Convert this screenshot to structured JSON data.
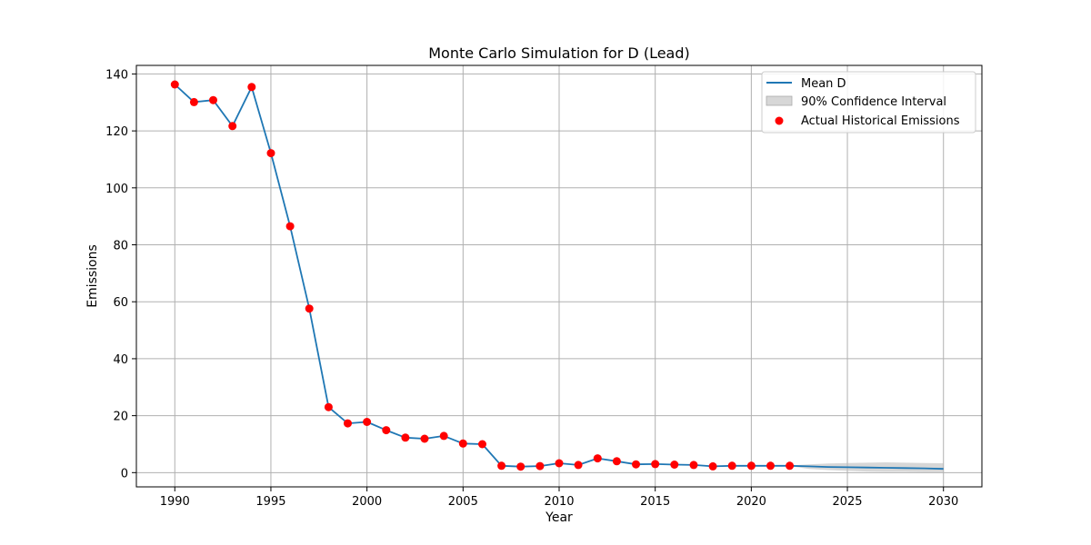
{
  "chart_data": {
    "type": "line",
    "title": "Monte Carlo Simulation for D (Lead)",
    "xlabel": "Year",
    "ylabel": "Emissions",
    "xlim": [
      1988,
      2032
    ],
    "ylim": [
      -5,
      143
    ],
    "xticks": [
      1990,
      1995,
      2000,
      2005,
      2010,
      2015,
      2020,
      2025,
      2030
    ],
    "yticks": [
      0,
      20,
      40,
      60,
      80,
      100,
      120,
      140
    ],
    "grid": true,
    "legend_position": "top-right",
    "colors": {
      "mean_line": "#1f77b4",
      "confidence_band": "#bdbdbd",
      "actual_points": "#ff0000"
    },
    "series": [
      {
        "name": "Mean D",
        "kind": "line",
        "x": [
          1990,
          1991,
          1992,
          1993,
          1994,
          1995,
          1996,
          1997,
          1998,
          1999,
          2000,
          2001,
          2002,
          2003,
          2004,
          2005,
          2006,
          2007,
          2008,
          2009,
          2010,
          2011,
          2012,
          2013,
          2014,
          2015,
          2016,
          2017,
          2018,
          2019,
          2020,
          2021,
          2022,
          2023,
          2024,
          2025,
          2026,
          2027,
          2028,
          2029,
          2030
        ],
        "y": [
          136.3,
          130.1,
          130.8,
          121.7,
          135.4,
          112.2,
          86.5,
          57.6,
          23.0,
          17.3,
          17.8,
          14.9,
          12.3,
          11.9,
          12.9,
          10.2,
          10.0,
          2.4,
          2.1,
          2.3,
          3.3,
          2.7,
          5.0,
          4.0,
          2.9,
          3.0,
          2.8,
          2.7,
          2.2,
          2.4,
          2.4,
          2.4,
          2.4,
          2.2,
          2.0,
          1.9,
          1.8,
          1.7,
          1.6,
          1.5,
          1.3
        ]
      },
      {
        "name": "90% Confidence Interval",
        "kind": "band",
        "x": [
          2022,
          2023,
          2024,
          2025,
          2026,
          2027,
          2028,
          2029,
          2030
        ],
        "lower": [
          2.3,
          1.3,
          0.9,
          0.6,
          0.4,
          0.3,
          0.3,
          0.2,
          0.2
        ],
        "upper": [
          2.5,
          2.9,
          3.2,
          3.4,
          3.5,
          3.6,
          3.5,
          3.4,
          3.3
        ]
      },
      {
        "name": "Actual Historical Emissions",
        "kind": "scatter",
        "x": [
          1990,
          1991,
          1992,
          1993,
          1994,
          1995,
          1996,
          1997,
          1998,
          1999,
          2000,
          2001,
          2002,
          2003,
          2004,
          2005,
          2006,
          2007,
          2008,
          2009,
          2010,
          2011,
          2012,
          2013,
          2014,
          2015,
          2016,
          2017,
          2018,
          2019,
          2020,
          2021,
          2022
        ],
        "y": [
          136.3,
          130.1,
          130.8,
          121.7,
          135.4,
          112.2,
          86.5,
          57.6,
          23.0,
          17.3,
          17.8,
          14.9,
          12.3,
          11.9,
          12.9,
          10.2,
          10.0,
          2.4,
          2.1,
          2.3,
          3.3,
          2.7,
          5.0,
          4.0,
          2.9,
          3.0,
          2.8,
          2.7,
          2.2,
          2.4,
          2.4,
          2.4,
          2.4
        ]
      }
    ]
  }
}
